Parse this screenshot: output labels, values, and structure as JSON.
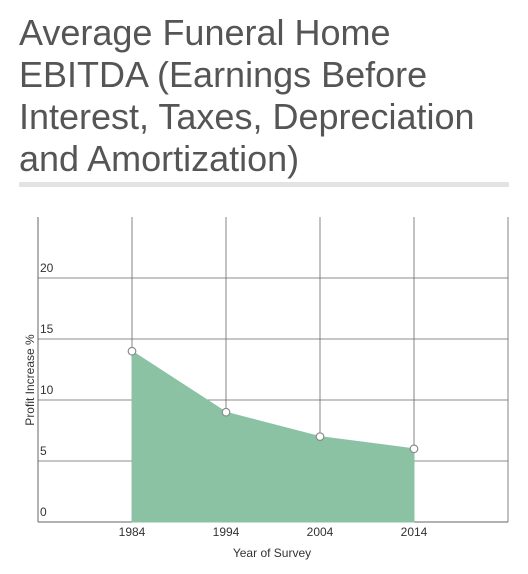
{
  "title": "Average Funeral Home EBITDA (Earnings Before Interest, Taxes, Depreciation and Amortization)",
  "colors": {
    "area_fill": "#8cc2a4",
    "area_stroke": "#8cc2a4",
    "grid": "#666666",
    "point_fill": "#ffffff",
    "point_stroke": "#8a8a8a",
    "rule": "#e3e3e3"
  },
  "chart_data": {
    "type": "area",
    "title": "Average Funeral Home EBITDA (Earnings Before Interest, Taxes, Depreciation and Amortization)",
    "xlabel": "Year of Survey",
    "ylabel": "Profit Increase %",
    "x": [
      1984,
      1994,
      2004,
      2014
    ],
    "x_tick_labels": [
      "1984",
      "1994",
      "2004",
      "2014"
    ],
    "y_tick_labels": [
      "0",
      "5",
      "10",
      "15",
      "20"
    ],
    "y_ticks": [
      0,
      5,
      10,
      15,
      20
    ],
    "series": [
      {
        "values": [
          14,
          9,
          7,
          6
        ]
      }
    ],
    "ylim": [
      0,
      25
    ],
    "xlim": [
      1974,
      2024
    ],
    "grid": true,
    "markers": true
  }
}
